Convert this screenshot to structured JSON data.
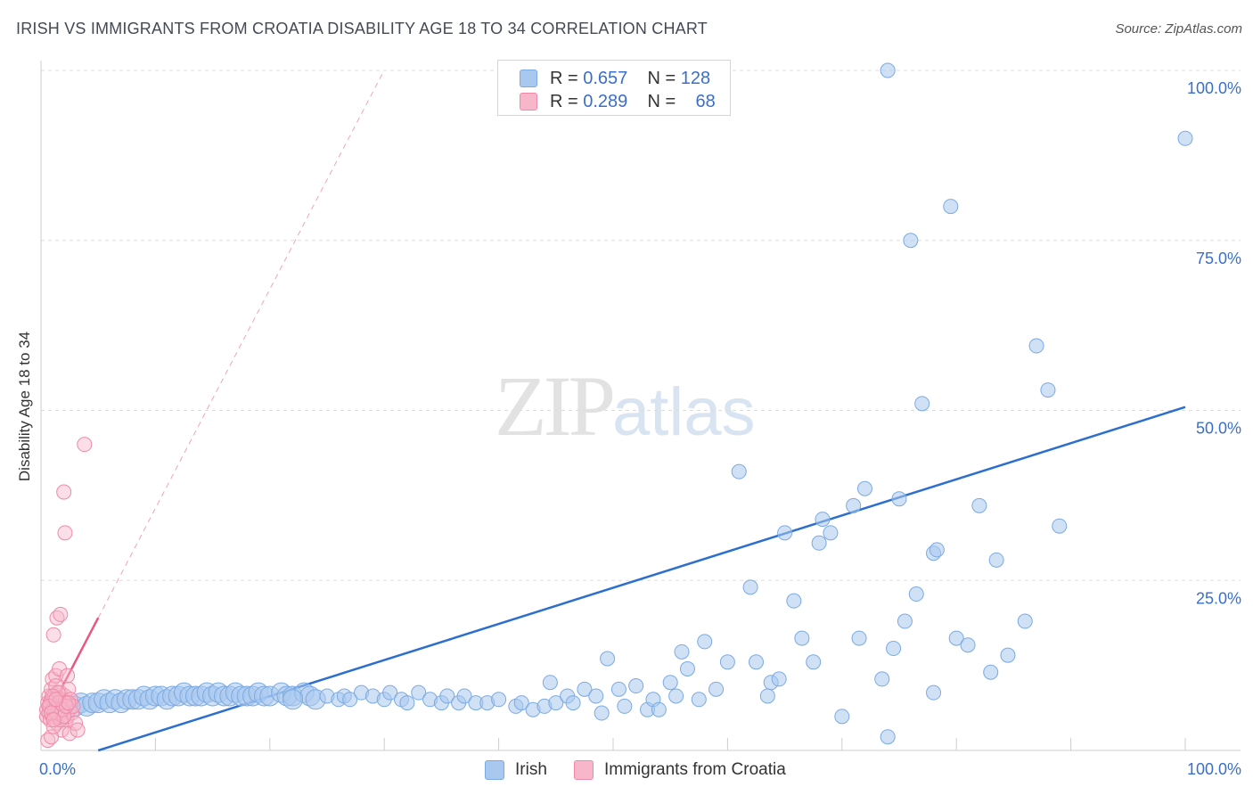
{
  "header": {
    "title": "IRISH VS IMMIGRANTS FROM CROATIA DISABILITY AGE 18 TO 34 CORRELATION CHART",
    "source": "Source: ZipAtlas.com"
  },
  "watermark": {
    "zip": "ZIP",
    "atlas": "atlas"
  },
  "legend": {
    "rows": [
      {
        "r_label": "R = ",
        "r_value": "0.657",
        "n_label": "N = ",
        "n_value": "128"
      },
      {
        "r_label": "R = ",
        "r_value": "0.289",
        "n_label": "N = ",
        "n_value": "68"
      }
    ],
    "bottom": [
      "Irish",
      "Immigrants from Croatia"
    ]
  },
  "colors": {
    "irish_fill": "#a9c8ef",
    "irish_stroke": "#7aaae3",
    "irish_line": "#2d6fce",
    "croatia_fill": "#f7b6c9",
    "croatia_stroke": "#ee8aa8",
    "croatia_line": "#e8577f",
    "tick_label": "#3a6fc9",
    "grid": "#dddddd"
  },
  "chart_data": {
    "type": "scatter",
    "title": "IRISH VS IMMIGRANTS FROM CROATIA DISABILITY AGE 18 TO 34 CORRELATION CHART",
    "xlabel": "",
    "ylabel": "Disability Age 18 to 34",
    "xlim": [
      0,
      100
    ],
    "ylim": [
      0,
      100
    ],
    "x_tick_labels": [
      "0.0%",
      "100.0%"
    ],
    "y_tick_labels": [
      "25.0%",
      "50.0%",
      "75.0%",
      "100.0%"
    ],
    "y_ticks": [
      25,
      50,
      75,
      100
    ],
    "grid": true,
    "legend_position": "top-center",
    "series": [
      {
        "name": "Irish",
        "r": 0.657,
        "n": 128,
        "trend": {
          "x": [
            5,
            100
          ],
          "y": [
            0,
            50.5
          ]
        },
        "points": [
          [
            3.0,
            6.5
          ],
          [
            3.5,
            7.0
          ],
          [
            4.0,
            6.5
          ],
          [
            4.5,
            7.0
          ],
          [
            5.0,
            7.0
          ],
          [
            5.5,
            7.5
          ],
          [
            6.0,
            7.0
          ],
          [
            6.5,
            7.5
          ],
          [
            7.0,
            7.0
          ],
          [
            7.5,
            7.5
          ],
          [
            8.0,
            7.5
          ],
          [
            8.5,
            7.5
          ],
          [
            9.0,
            8.0
          ],
          [
            9.5,
            7.5
          ],
          [
            10.0,
            8.0
          ],
          [
            10.5,
            8.0
          ],
          [
            11.0,
            7.5
          ],
          [
            11.5,
            8.0
          ],
          [
            12.0,
            8.0
          ],
          [
            12.5,
            8.5
          ],
          [
            13.0,
            8.0
          ],
          [
            13.5,
            8.0
          ],
          [
            14.0,
            8.0
          ],
          [
            14.5,
            8.5
          ],
          [
            15.0,
            8.0
          ],
          [
            15.5,
            8.5
          ],
          [
            16.0,
            8.0
          ],
          [
            16.5,
            8.0
          ],
          [
            17.0,
            8.5
          ],
          [
            17.5,
            8.0
          ],
          [
            18.0,
            8.0
          ],
          [
            18.5,
            8.0
          ],
          [
            19.0,
            8.5
          ],
          [
            19.5,
            8.0
          ],
          [
            20.0,
            8.0
          ],
          [
            21.0,
            8.5
          ],
          [
            21.5,
            8.0
          ],
          [
            22.0,
            8.0
          ],
          [
            23.0,
            8.5
          ],
          [
            23.5,
            8.0
          ],
          [
            24.0,
            7.5
          ],
          [
            25.0,
            8.0
          ],
          [
            26.0,
            7.5
          ],
          [
            26.5,
            8.0
          ],
          [
            27.0,
            7.5
          ],
          [
            28.0,
            8.5
          ],
          [
            29.0,
            8.0
          ],
          [
            30.0,
            7.5
          ],
          [
            30.5,
            8.5
          ],
          [
            31.5,
            7.5
          ],
          [
            32.0,
            7.0
          ],
          [
            33.0,
            8.5
          ],
          [
            34.0,
            7.5
          ],
          [
            35.0,
            7.0
          ],
          [
            35.5,
            8.0
          ],
          [
            36.5,
            7.0
          ],
          [
            37.0,
            8.0
          ],
          [
            38.0,
            7.0
          ],
          [
            39.0,
            7.0
          ],
          [
            40.0,
            7.5
          ],
          [
            41.5,
            6.5
          ],
          [
            42.0,
            7.0
          ],
          [
            43.0,
            6.0
          ],
          [
            44.0,
            6.5
          ],
          [
            44.5,
            10.0
          ],
          [
            45.0,
            7.0
          ],
          [
            46.0,
            8.0
          ],
          [
            46.5,
            7.0
          ],
          [
            47.5,
            9.0
          ],
          [
            48.5,
            8.0
          ],
          [
            49.0,
            5.5
          ],
          [
            49.5,
            13.5
          ],
          [
            50.5,
            9.0
          ],
          [
            51.0,
            6.5
          ],
          [
            52.0,
            9.5
          ],
          [
            53.0,
            6.0
          ],
          [
            53.5,
            7.5
          ],
          [
            54.0,
            6.0
          ],
          [
            55.0,
            10.0
          ],
          [
            55.5,
            8.0
          ],
          [
            56.0,
            14.5
          ],
          [
            56.5,
            12.0
          ],
          [
            57.5,
            7.5
          ],
          [
            58.0,
            16.0
          ],
          [
            59.0,
            9.0
          ],
          [
            60.0,
            13.0
          ],
          [
            61.0,
            41.0
          ],
          [
            62.0,
            24.0
          ],
          [
            62.5,
            13.0
          ],
          [
            63.5,
            8.0
          ],
          [
            63.8,
            10.0
          ],
          [
            64.5,
            10.5
          ],
          [
            65.0,
            32.0
          ],
          [
            65.8,
            22.0
          ],
          [
            66.5,
            16.5
          ],
          [
            67.5,
            13.0
          ],
          [
            68.0,
            30.5
          ],
          [
            68.3,
            34.0
          ],
          [
            69.0,
            32.0
          ],
          [
            70.0,
            5.0
          ],
          [
            71.0,
            36.0
          ],
          [
            71.5,
            16.5
          ],
          [
            72.0,
            38.5
          ],
          [
            73.5,
            10.5
          ],
          [
            74.0,
            2.0
          ],
          [
            74.5,
            15.0
          ],
          [
            75.0,
            37.0
          ],
          [
            75.5,
            19.0
          ],
          [
            76.5,
            23.0
          ],
          [
            77.0,
            51.0
          ],
          [
            78.0,
            29.0
          ],
          [
            78.3,
            29.5
          ],
          [
            79.5,
            80.0
          ],
          [
            80.0,
            16.5
          ],
          [
            81.0,
            15.5
          ],
          [
            82.0,
            36.0
          ],
          [
            83.0,
            11.5
          ],
          [
            84.5,
            14.0
          ],
          [
            86.0,
            19.0
          ],
          [
            87.0,
            59.5
          ],
          [
            88.0,
            53.0
          ],
          [
            89.0,
            33.0
          ],
          [
            74.0,
            100.0
          ],
          [
            76.0,
            75.0
          ],
          [
            78.0,
            8.5
          ],
          [
            83.5,
            28.0
          ],
          [
            100.0,
            90.0
          ],
          [
            22.0,
            7.5
          ]
        ]
      },
      {
        "name": "Immigrants from Croatia",
        "r": 0.289,
        "n": 68,
        "trend": {
          "x": [
            0.5,
            5
          ],
          "y": [
            5,
            19.5
          ]
        },
        "points": [
          [
            0.5,
            5.0
          ],
          [
            0.5,
            6.0
          ],
          [
            0.6,
            7.0
          ],
          [
            0.7,
            8.0
          ],
          [
            0.7,
            5.5
          ],
          [
            0.8,
            6.5
          ],
          [
            0.8,
            4.5
          ],
          [
            0.9,
            7.5
          ],
          [
            0.9,
            9.0
          ],
          [
            1.0,
            5.0
          ],
          [
            1.0,
            6.0
          ],
          [
            1.0,
            10.5
          ],
          [
            1.1,
            7.0
          ],
          [
            1.1,
            17.0
          ],
          [
            1.2,
            8.0
          ],
          [
            1.2,
            5.5
          ],
          [
            1.3,
            6.5
          ],
          [
            1.3,
            11.0
          ],
          [
            1.4,
            4.0
          ],
          [
            1.4,
            19.5
          ],
          [
            1.5,
            7.0
          ],
          [
            1.5,
            5.0
          ],
          [
            1.6,
            12.0
          ],
          [
            1.6,
            6.0
          ],
          [
            1.7,
            8.5
          ],
          [
            1.7,
            20.0
          ],
          [
            1.8,
            3.0
          ],
          [
            1.8,
            6.5
          ],
          [
            1.9,
            7.5
          ],
          [
            1.9,
            5.5
          ],
          [
            2.0,
            38.0
          ],
          [
            2.0,
            6.0
          ],
          [
            2.1,
            32.0
          ],
          [
            2.1,
            8.0
          ],
          [
            2.2,
            4.5
          ],
          [
            2.2,
            7.0
          ],
          [
            2.3,
            11.0
          ],
          [
            2.3,
            5.0
          ],
          [
            2.4,
            9.0
          ],
          [
            2.5,
            6.0
          ],
          [
            2.5,
            2.5
          ],
          [
            2.6,
            7.5
          ],
          [
            2.7,
            5.5
          ],
          [
            2.8,
            6.5
          ],
          [
            3.0,
            4.0
          ],
          [
            3.2,
            3.0
          ],
          [
            3.8,
            45.0
          ],
          [
            0.6,
            1.5
          ],
          [
            0.9,
            2.0
          ],
          [
            1.1,
            3.5
          ],
          [
            1.3,
            9.5
          ],
          [
            1.5,
            8.5
          ],
          [
            1.7,
            4.5
          ],
          [
            1.9,
            6.0
          ],
          [
            2.1,
            7.0
          ],
          [
            0.8,
            7.0
          ],
          [
            1.0,
            8.0
          ],
          [
            1.2,
            6.0
          ],
          [
            1.4,
            5.5
          ],
          [
            1.6,
            7.0
          ],
          [
            1.8,
            6.0
          ],
          [
            2.0,
            5.0
          ],
          [
            2.2,
            6.5
          ],
          [
            2.4,
            7.0
          ],
          [
            0.7,
            6.5
          ],
          [
            0.9,
            5.5
          ],
          [
            1.1,
            4.5
          ],
          [
            1.3,
            7.5
          ]
        ]
      }
    ]
  }
}
